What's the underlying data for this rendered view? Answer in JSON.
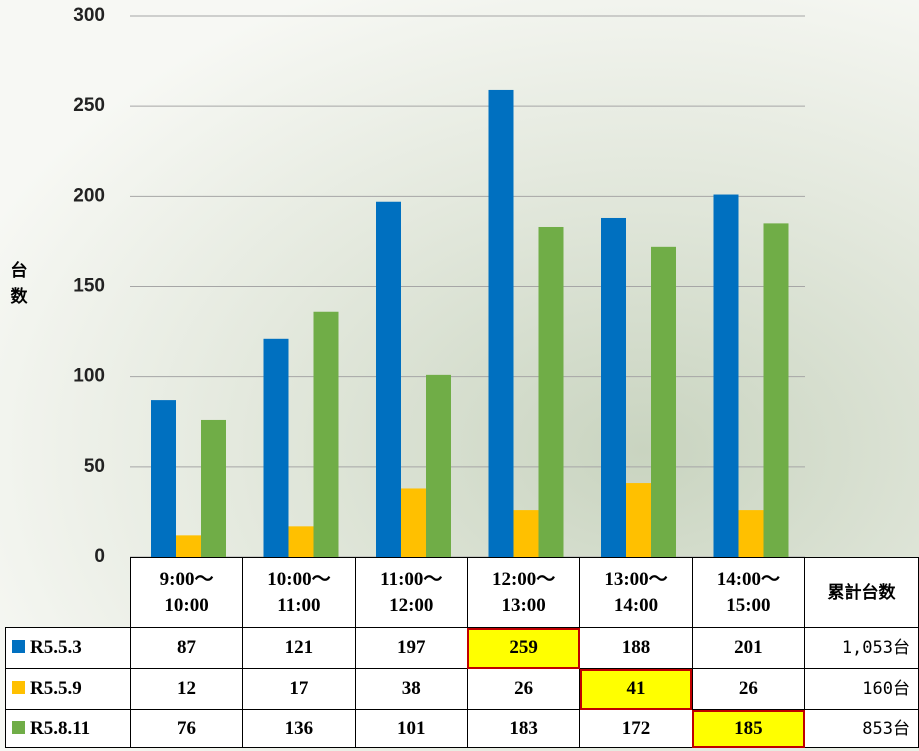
{
  "chart_data": {
    "type": "bar",
    "y_label": "台数",
    "categories": [
      "9:00～\n10:00",
      "10:00～\n11:00",
      "11:00～\n12:00",
      "12:00～\n13:00",
      "13:00～\n14:00",
      "14:00～\n15:00"
    ],
    "total_header": "累計台数",
    "series": [
      {
        "name": "R5.5.3",
        "color": "#0070c0",
        "values": [
          87,
          121,
          197,
          259,
          188,
          201
        ],
        "total": "1,053台",
        "highlight": 3
      },
      {
        "name": "R5.5.9",
        "color": "#ffc000",
        "values": [
          12,
          17,
          38,
          26,
          41,
          26
        ],
        "total": "160台",
        "highlight": 4
      },
      {
        "name": "R5.8.11",
        "color": "#70ad47",
        "values": [
          76,
          136,
          101,
          183,
          172,
          185
        ],
        "total": "853台",
        "highlight": 5
      }
    ],
    "ylim": [
      0,
      300
    ],
    "yticks": [
      0,
      50,
      100,
      150,
      200,
      250,
      300
    ],
    "grid": true
  }
}
